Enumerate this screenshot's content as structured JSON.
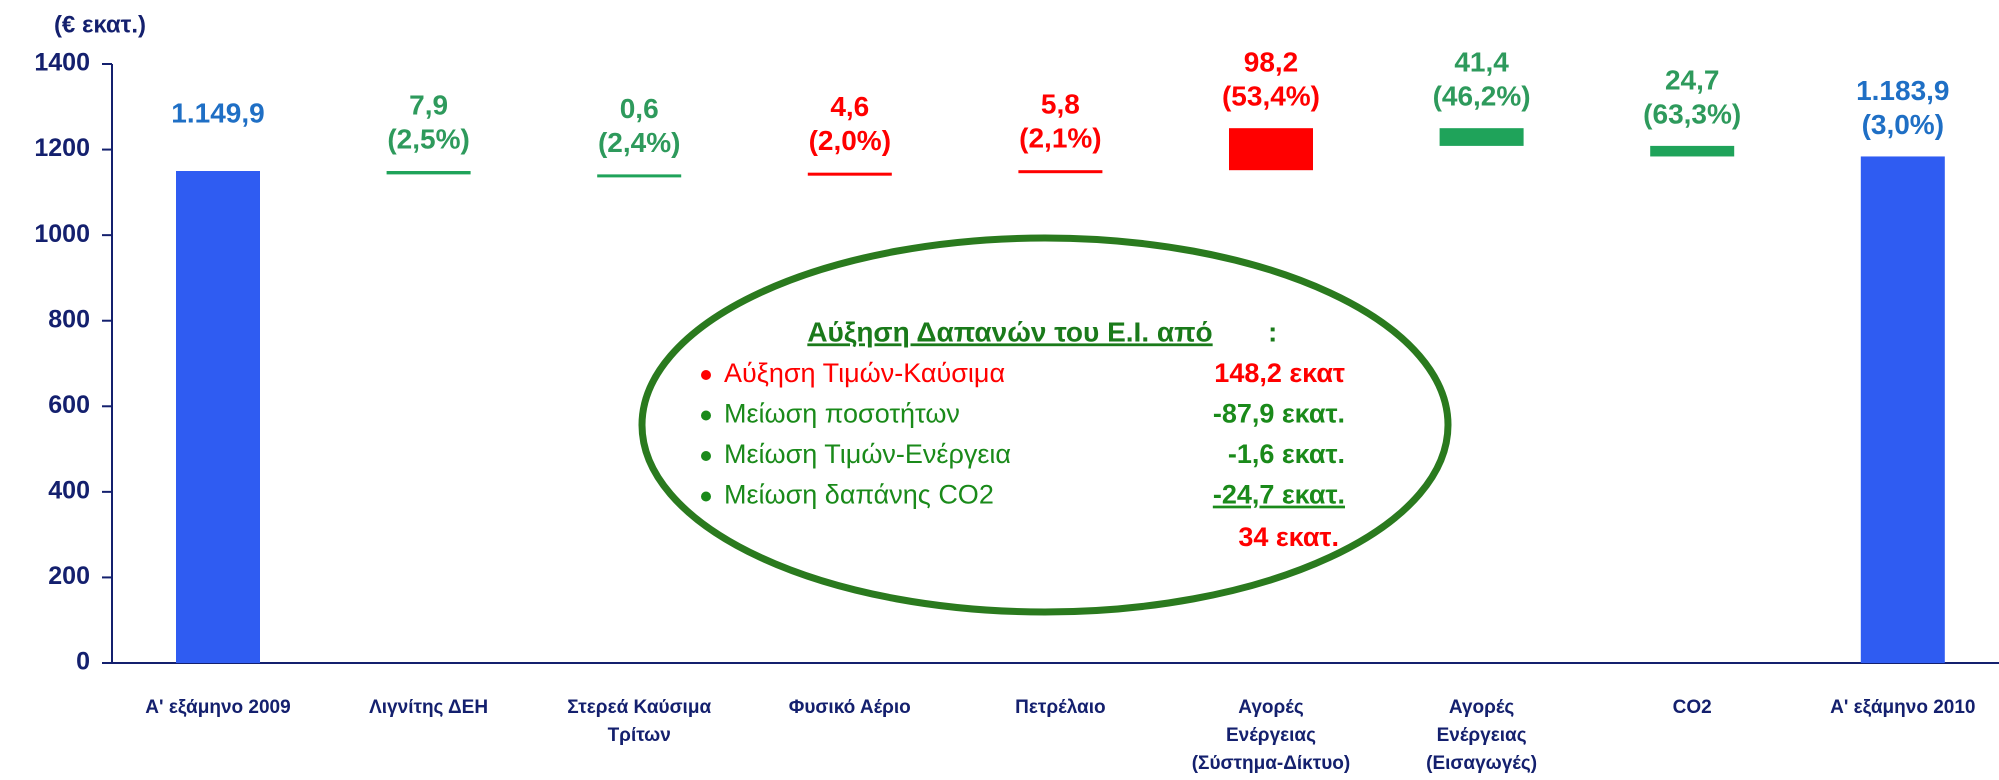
{
  "chart_data": {
    "type": "waterfall",
    "y_label": "(€ εκατ.)",
    "categories": [
      [
        "Α' εξάμηνο 2009"
      ],
      [
        "Λιγνίτης ΔΕΗ"
      ],
      [
        "Στερεά Καύσιμα",
        "Τρίτων"
      ],
      [
        "Φυσικό Αέριο"
      ],
      [
        "Πετρέλαιο"
      ],
      [
        "Αγορές",
        "Ενέργειας",
        "(Σύστημα-Δίκτυο)"
      ],
      [
        "Αγορές",
        "Ενέργειας",
        "(Εισαγωγές)"
      ],
      [
        "CO2"
      ],
      [
        "Α' εξάμηνο 2010"
      ]
    ],
    "values": [
      1149.9,
      7.9,
      0.6,
      4.6,
      5.8,
      98.2,
      41.4,
      24.7,
      1183.9
    ],
    "value_labels": [
      "1.149,9",
      "7,9",
      "0,6",
      "4,6",
      "5,8",
      "98,2",
      "41,4",
      "24,7",
      "1.183,9"
    ],
    "percents": [
      null,
      2.5,
      2.4,
      2.0,
      2.1,
      53.4,
      46.2,
      63.3,
      3.0
    ],
    "percent_labels": [
      null,
      "(2,5%)",
      "(2,4%)",
      "(2,0%)",
      "(2,1%)",
      "(53,4%)",
      "(46,2%)",
      "(63,3%)",
      "(3,0%)"
    ],
    "directions": [
      "total",
      "down",
      "down",
      "up",
      "up",
      "up",
      "down",
      "down",
      "total"
    ],
    "colors": [
      "#2f5cf2",
      "#1fa35a",
      "#1fa35a",
      "#ff0000",
      "#ff0000",
      "#ff0000",
      "#1fa35a",
      "#1fa35a",
      "#2f5cf2"
    ],
    "label_colors": [
      "#1f6fc5",
      "#2e9a5c",
      "#2e9a5c",
      "#ff0000",
      "#ff0000",
      "#ff0000",
      "#2e9a5c",
      "#2e9a5c",
      "#1f6fc5"
    ],
    "ylim": [
      0,
      1400
    ],
    "yticks": [
      0,
      200,
      400,
      600,
      800,
      1000,
      1200,
      1400
    ],
    "grid": false,
    "annotation": {
      "title": "Αύξηση Δαπανών του Ε.Ι. από",
      "title_suffix": ":",
      "items": [
        {
          "text": "Αύξηση Τιμών-Καύσιμα",
          "amount": "148,2 εκατ",
          "color": "#ff0000"
        },
        {
          "text": "Μείωση ποσοτήτων",
          "amount": "-87,9 εκατ.",
          "color": "#1a8a1a"
        },
        {
          "text": "Μείωση Τιμών-Ενέργεια",
          "amount": "-1,6 εκατ.",
          "color": "#1a8a1a"
        },
        {
          "text": "Μείωση δαπάνης CO2",
          "amount": "-24,7 εκατ.",
          "color": "#1a8a1a"
        }
      ],
      "total": "34   εκατ."
    }
  }
}
